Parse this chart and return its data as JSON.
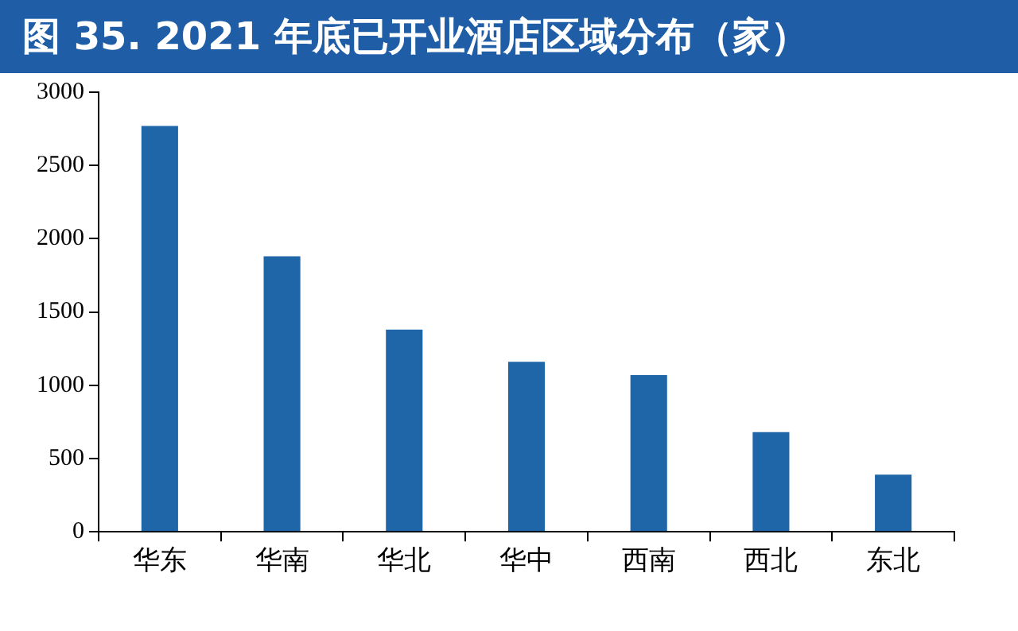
{
  "chart_data": {
    "type": "bar",
    "title": "图 35. 2021 年底已开业酒店区域分布（家）",
    "categories": [
      "华东",
      "华南",
      "华北",
      "华中",
      "西南",
      "西北",
      "东北"
    ],
    "values": [
      2770,
      1880,
      1380,
      1160,
      1070,
      680,
      390
    ],
    "color": "#1f66a8",
    "ylim": [
      0,
      3000
    ],
    "yticks": [
      0,
      500,
      1000,
      1500,
      2000,
      2500,
      3000
    ],
    "grid": false,
    "legend": false
  }
}
